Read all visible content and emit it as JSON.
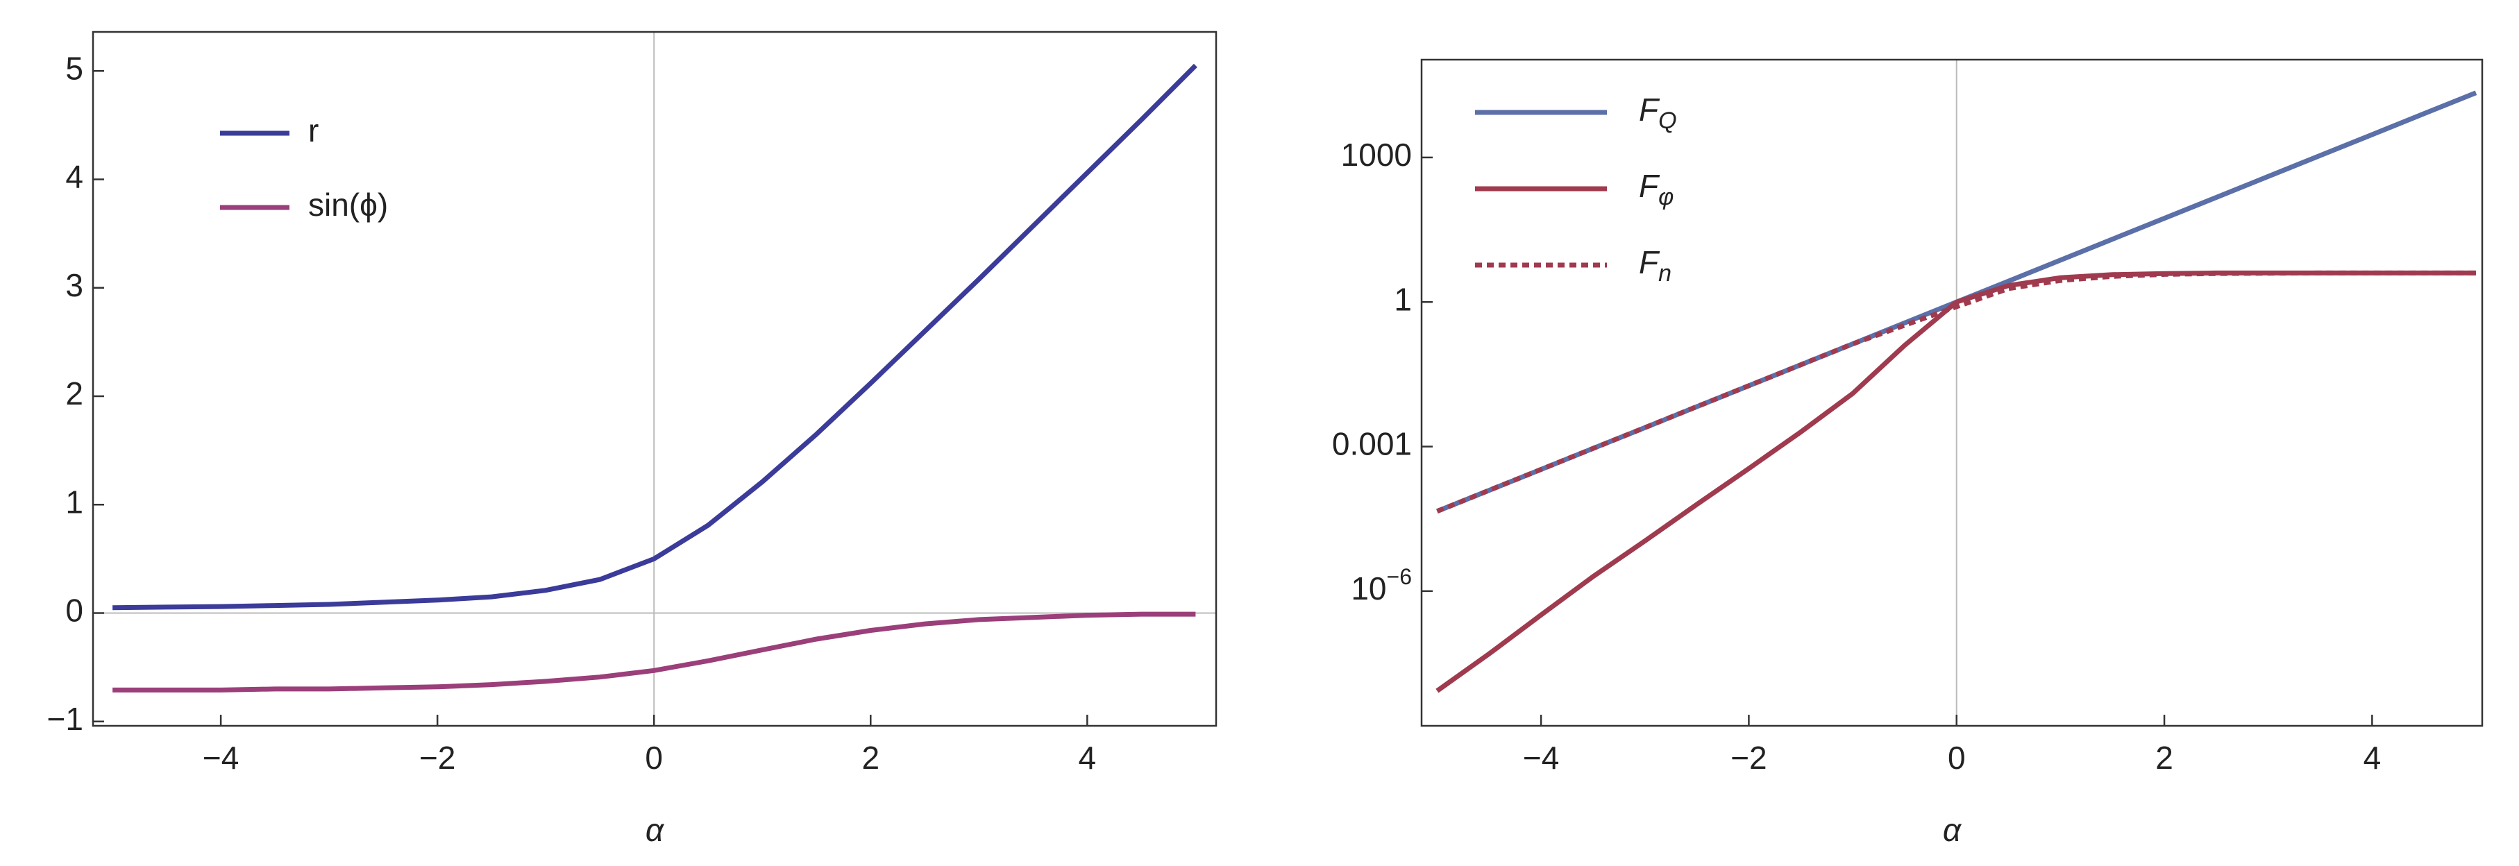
{
  "chart_data": [
    {
      "type": "line",
      "xlabel": "α",
      "xlim": [
        -5.18,
        5.19
      ],
      "ylim": [
        -1.04,
        5.36
      ],
      "yscale": "linear",
      "xticks": [
        {
          "value": -4,
          "label": "−4"
        },
        {
          "value": -2,
          "label": "−2"
        },
        0,
        2,
        4
      ],
      "yticks": [
        {
          "value": -1,
          "label": "−1"
        },
        0,
        1,
        2,
        3,
        4,
        5
      ],
      "legend": "upper left",
      "x": [
        -5,
        -4.5,
        -4,
        -3.5,
        -3,
        -2.5,
        -2,
        -1.5,
        -1,
        -0.5,
        0,
        0.5,
        1,
        1.5,
        2,
        2.5,
        3,
        3.5,
        4,
        4.5,
        5
      ],
      "series": [
        {
          "name": "r",
          "color": "#3b3b9a",
          "style": "solid",
          "values": [
            0.05,
            0.055,
            0.06,
            0.07,
            0.08,
            0.1,
            0.12,
            0.15,
            0.21,
            0.31,
            0.5,
            0.81,
            1.21,
            1.65,
            2.12,
            2.6,
            3.08,
            3.57,
            4.06,
            4.55,
            5.05
          ]
        },
        {
          "name": "sin(ϕ)",
          "color": "#9b3f7a",
          "style": "solid",
          "values": [
            -0.71,
            -0.71,
            -0.71,
            -0.7,
            -0.7,
            -0.69,
            -0.68,
            -0.66,
            -0.63,
            -0.59,
            -0.53,
            -0.44,
            -0.34,
            -0.24,
            -0.16,
            -0.1,
            -0.06,
            -0.04,
            -0.02,
            -0.01,
            -0.01
          ]
        }
      ]
    },
    {
      "type": "line",
      "xlabel": "α",
      "xlim": [
        -5.15,
        5.06
      ],
      "ylim": [
        1.6e-09,
        107000.0
      ],
      "yscale": "log",
      "xticks": [
        {
          "value": -4,
          "label": "−4"
        },
        {
          "value": -2,
          "label": "−2"
        },
        0,
        2,
        4
      ],
      "yticks": [
        1000,
        1,
        0.001,
        {
          "value": 1e-06,
          "label": "10",
          "exponent": "−6"
        }
      ],
      "legend": "upper left",
      "x": [
        -5,
        -4.5,
        -4,
        -3.5,
        -3,
        -2.5,
        -2,
        -1.5,
        -1,
        -0.5,
        0,
        0.5,
        1,
        1.5,
        2,
        2.5,
        3,
        3.5,
        4,
        4.5,
        5
      ],
      "series": [
        {
          "name": "F",
          "subscript": "Q",
          "color": "#5b6fa8",
          "style": "solid",
          "values": [
            4.54e-05,
            0.0001234,
            0.000335,
            0.000912,
            0.00248,
            0.00674,
            0.0183,
            0.0498,
            0.135,
            0.368,
            1,
            2.72,
            7.39,
            20.1,
            54.6,
            148,
            403,
            1097,
            2981,
            8103,
            22026
          ]
        },
        {
          "name": "F",
          "subscript": "φ",
          "color": "#a03a4e",
          "style": "solid",
          "values": [
            8.5e-09,
            5e-08,
            3.2e-07,
            2e-06,
            1.1e-05,
            6.3e-05,
            0.00035,
            0.002,
            0.0126,
            0.126,
            1,
            2.2,
            3.2,
            3.7,
            3.9,
            4,
            4,
            4,
            4,
            4,
            4
          ]
        },
        {
          "name": "F",
          "subscript": "n",
          "color": "#a03a4e",
          "style": "dotted",
          "values": [
            4.54e-05,
            0.0001234,
            0.000335,
            0.000912,
            0.00248,
            0.00674,
            0.0183,
            0.0498,
            0.135,
            0.33,
            0.8,
            1.9,
            2.8,
            3.4,
            3.75,
            3.9,
            3.97,
            4,
            4,
            4,
            4
          ]
        }
      ]
    }
  ]
}
